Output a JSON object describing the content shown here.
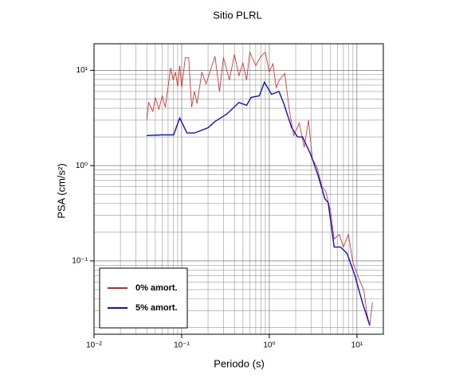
{
  "chart_data": {
    "type": "line",
    "title": "Sitio PLRL",
    "x_label": "Periodo (s)",
    "y_label": "PSA (cm/s²)",
    "xlog": true,
    "ylog": true,
    "grid": true,
    "legend_position": "lower left",
    "xlim": [
      0.01,
      20
    ],
    "ylim": [
      0.017,
      19
    ],
    "xticks": [
      {
        "value": 0.01,
        "label": "10⁻²"
      },
      {
        "value": 0.1,
        "label": "10⁻¹"
      },
      {
        "value": 1,
        "label": "10⁰"
      },
      {
        "value": 10,
        "label": "10¹"
      }
    ],
    "yticks": [
      {
        "value": 0.1,
        "label": "10⁻¹"
      },
      {
        "value": 1,
        "label": "10⁰"
      },
      {
        "value": 10,
        "label": "10¹"
      }
    ],
    "x_minor_ticks": [
      0.02,
      0.03,
      0.04,
      0.05,
      0.06,
      0.07,
      0.08,
      0.09,
      0.2,
      0.3,
      0.4,
      0.5,
      0.6,
      0.7,
      0.8,
      0.9,
      2,
      3,
      4,
      5,
      6,
      7,
      8,
      9
    ],
    "y_minor_ticks": [
      0.02,
      0.03,
      0.04,
      0.05,
      0.06,
      0.07,
      0.08,
      0.09,
      0.2,
      0.3,
      0.4,
      0.5,
      0.6,
      0.7,
      0.8,
      0.9,
      2,
      3,
      4,
      5,
      6,
      7,
      8,
      9
    ],
    "series": [
      {
        "name": "0% amort.",
        "color": "#e02020",
        "x": [
          0.04,
          0.042,
          0.047,
          0.05,
          0.055,
          0.06,
          0.065,
          0.075,
          0.08,
          0.085,
          0.09,
          0.095,
          0.1,
          0.11,
          0.12,
          0.13,
          0.14,
          0.15,
          0.17,
          0.19,
          0.21,
          0.24,
          0.27,
          0.3,
          0.35,
          0.4,
          0.45,
          0.5,
          0.55,
          0.6,
          0.7,
          0.8,
          0.9,
          1.0,
          1.1,
          1.2,
          1.3,
          1.5,
          1.7,
          1.9,
          2.2,
          2.5,
          2.8,
          3.1,
          3.5,
          4.0,
          4.4,
          5,
          5.5,
          6.3,
          7,
          8,
          9,
          10.5,
          12,
          13,
          14,
          15
        ],
        "values": [
          3.0,
          4.6,
          3.7,
          5.2,
          3.9,
          5.4,
          4.1,
          10.6,
          7.9,
          9.6,
          6.8,
          11.2,
          6.6,
          13.6,
          13.6,
          4.1,
          6,
          4.5,
          9.6,
          7.2,
          9.6,
          14,
          6,
          13.6,
          7.9,
          14.7,
          8.8,
          12,
          7.9,
          15.5,
          11.2,
          14,
          15.5,
          9.6,
          11.7,
          6.6,
          7.9,
          9.3,
          3.7,
          2.07,
          2.8,
          1.55,
          3.0,
          1.17,
          0.96,
          0.6,
          0.54,
          0.33,
          0.17,
          0.19,
          0.14,
          0.19,
          0.096,
          0.066,
          0.049,
          0.028,
          0.021,
          0.037
        ]
      },
      {
        "name": "5% amort.",
        "color": "#1010d0",
        "x": [
          0.04,
          0.06,
          0.081,
          0.095,
          0.115,
          0.14,
          0.2,
          0.24,
          0.33,
          0.45,
          0.55,
          0.62,
          0.77,
          0.88,
          1.06,
          1.29,
          1.46,
          1.8,
          2.1,
          2.4,
          3.0,
          3.6,
          4.3,
          4.7,
          5.5,
          6.5,
          7.7,
          9.4,
          11.5,
          14
        ],
        "values": [
          2.07,
          2.1,
          2.1,
          3.16,
          2.2,
          2.2,
          2.5,
          2.9,
          3.5,
          4.6,
          4.3,
          5.2,
          5.4,
          7.5,
          5.6,
          6,
          4.5,
          2.5,
          2,
          2,
          1.28,
          0.79,
          0.45,
          0.41,
          0.14,
          0.14,
          0.12,
          0.072,
          0.037,
          0.021
        ]
      }
    ]
  }
}
